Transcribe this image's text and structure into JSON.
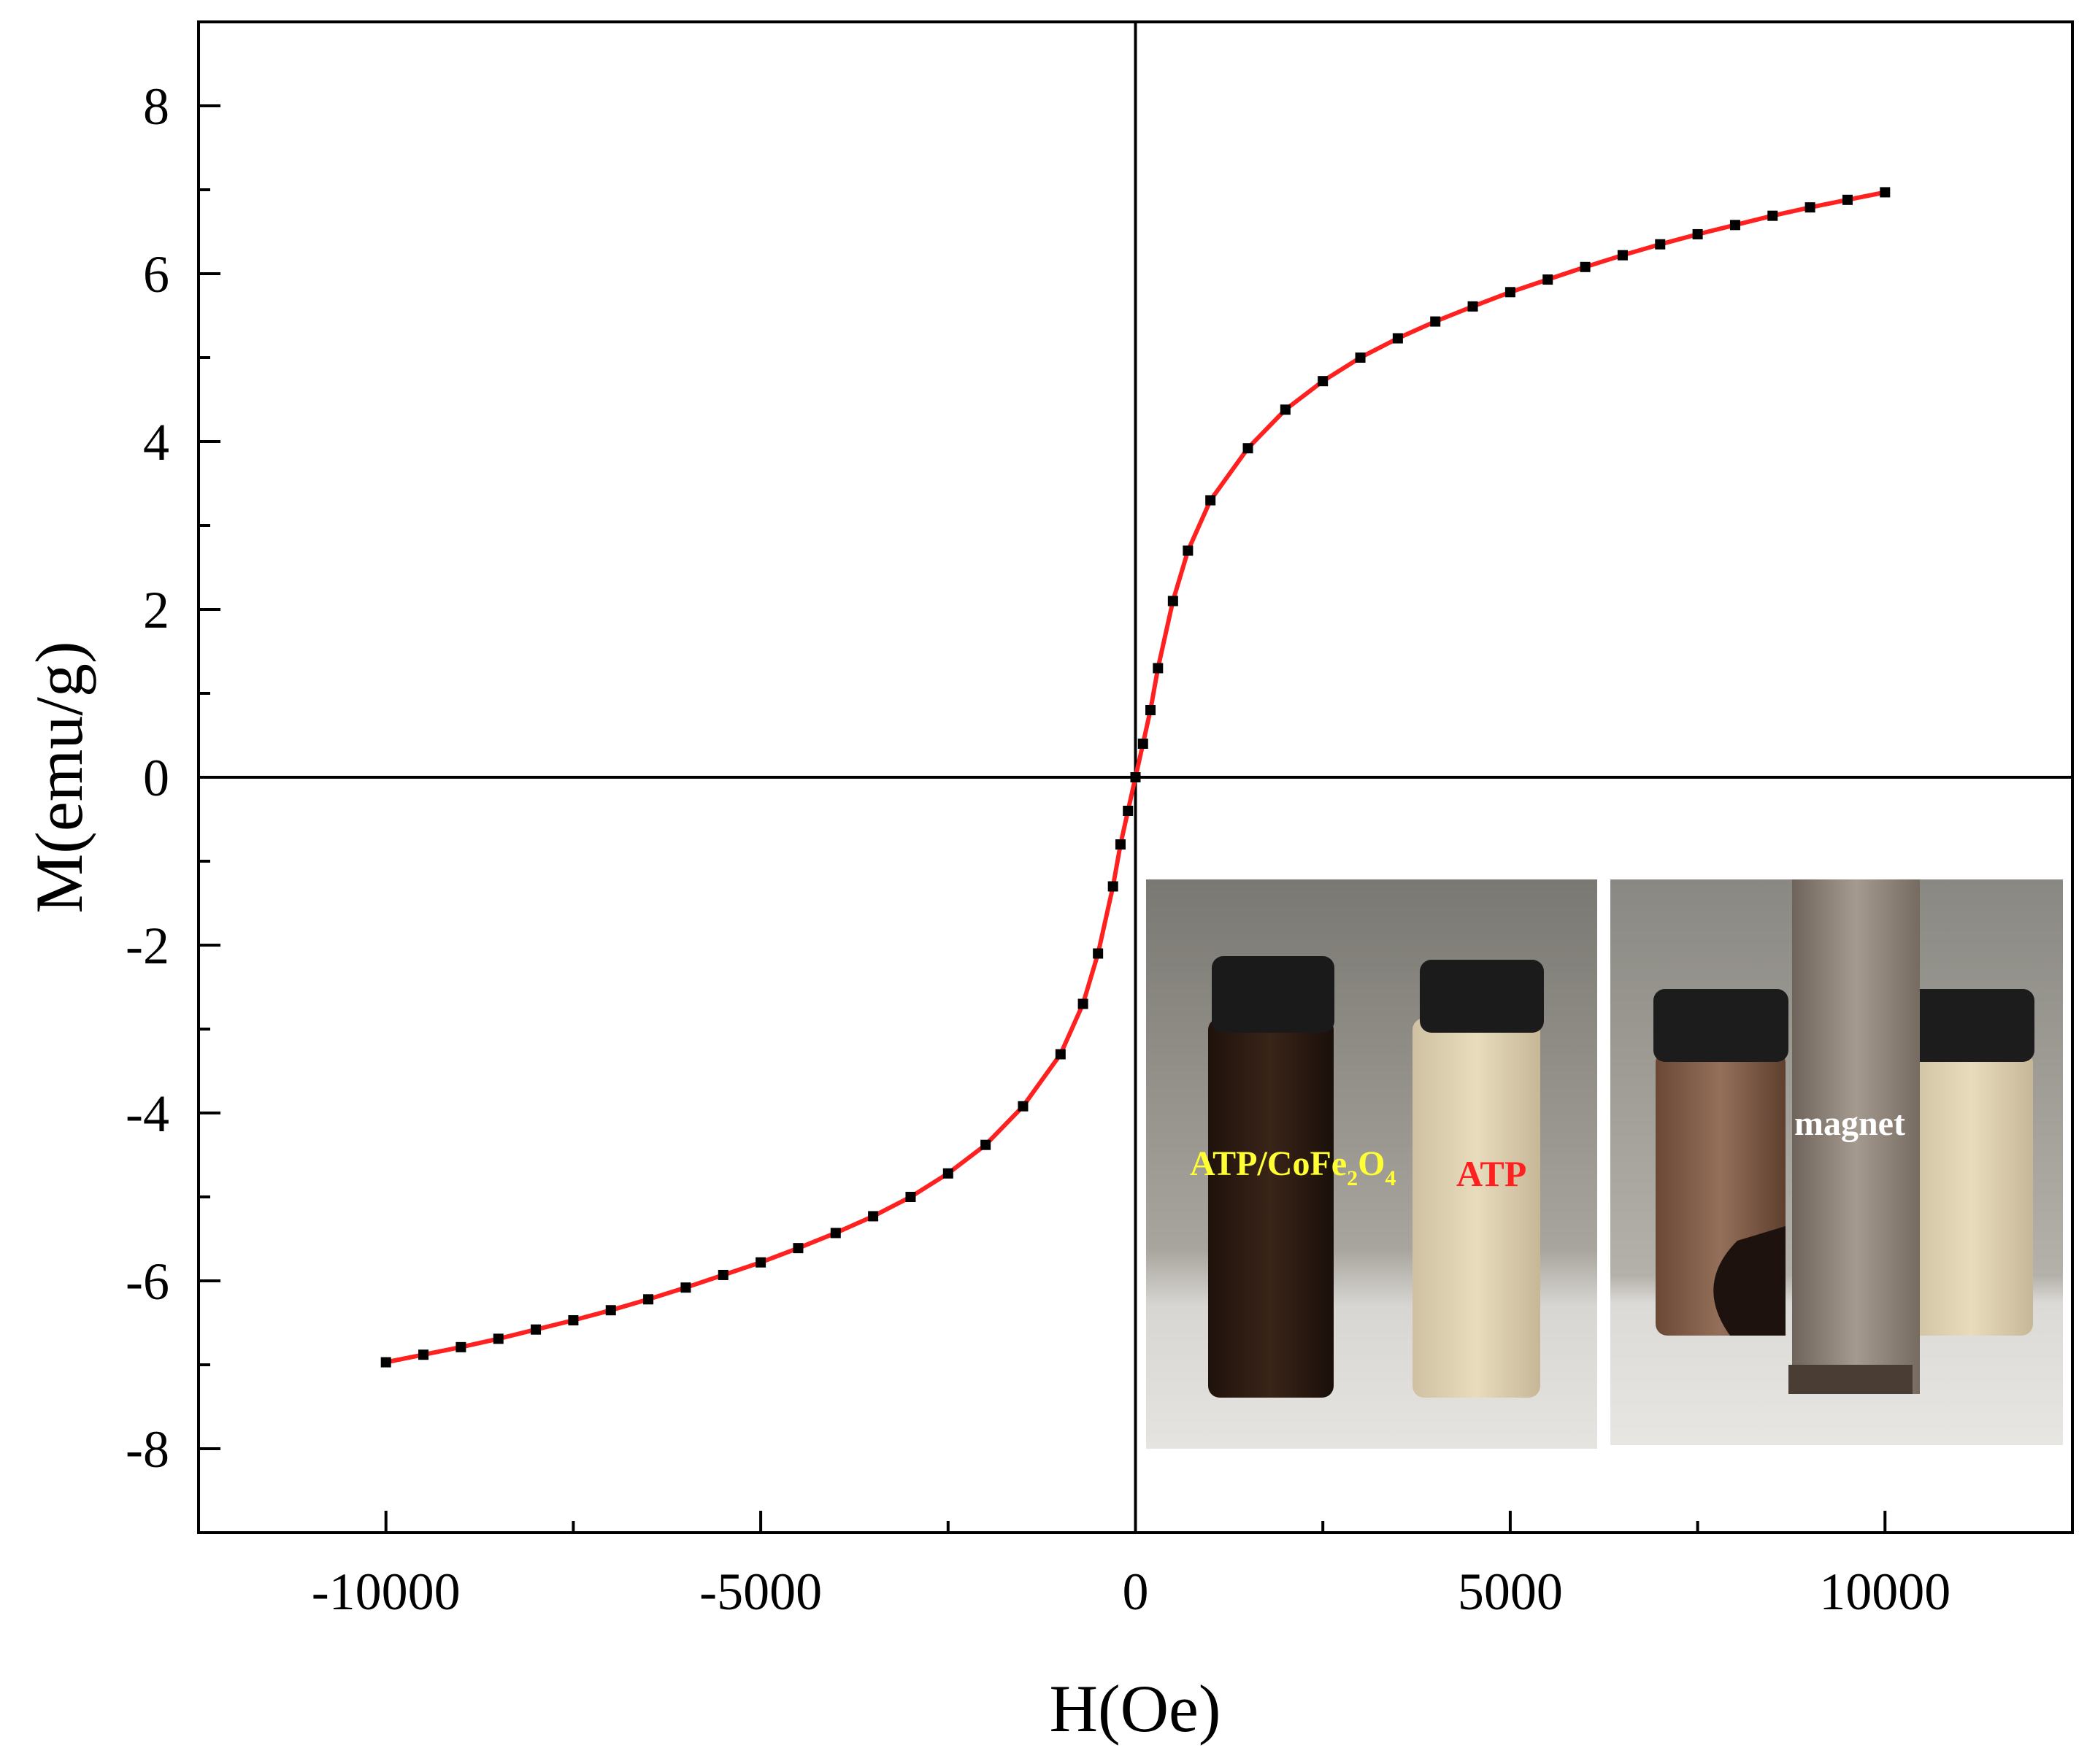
{
  "chart_data": {
    "type": "line",
    "xlabel": "H(Oe)",
    "ylabel": "M(emu/g)",
    "xlim": [
      -12500,
      12500
    ],
    "ylim": [
      -9,
      9
    ],
    "xticks": [
      -10000,
      -5000,
      0,
      5000,
      10000
    ],
    "xtick_labels": [
      "-10000",
      "-5000",
      "0",
      "5000",
      "10000"
    ],
    "yticks": [
      -8,
      -6,
      -4,
      -2,
      0,
      2,
      4,
      6,
      8
    ],
    "ytick_labels": [
      "-8",
      "-6",
      "-4",
      "-2",
      "0",
      "2",
      "4",
      "6",
      "8"
    ],
    "grid": false,
    "series": [
      {
        "marker": "square",
        "line_color": "#ff2020",
        "marker_color": "#000000",
        "x": [
          -10000,
          -9500,
          -9000,
          -8500,
          -8000,
          -7500,
          -7000,
          -6500,
          -6000,
          -5500,
          -5000,
          -4500,
          -4000,
          -3500,
          -3000,
          -2500,
          -2000,
          -1500,
          -1000,
          -700,
          -500,
          -300,
          -200,
          -100,
          0,
          100,
          200,
          300,
          500,
          700,
          1000,
          1500,
          2000,
          2500,
          3000,
          3500,
          4000,
          4500,
          5000,
          5500,
          6000,
          6500,
          7000,
          7500,
          8000,
          8500,
          9000,
          9500,
          10000
        ],
        "y": [
          -6.97,
          -6.88,
          -6.79,
          -6.69,
          -6.58,
          -6.47,
          -6.35,
          -6.22,
          -6.08,
          -5.93,
          -5.78,
          -5.61,
          -5.43,
          -5.23,
          -5.0,
          -4.72,
          -4.38,
          -3.92,
          -3.3,
          -2.7,
          -2.1,
          -1.3,
          -0.8,
          -0.4,
          0.0,
          0.4,
          0.8,
          1.3,
          2.1,
          2.7,
          3.3,
          3.92,
          4.38,
          4.72,
          5.0,
          5.23,
          5.43,
          5.61,
          5.78,
          5.93,
          6.08,
          6.22,
          6.35,
          6.47,
          6.58,
          6.69,
          6.79,
          6.88,
          6.97
        ]
      }
    ]
  },
  "inset": {
    "left_photo": {
      "label_composite": "ATP/CoFe",
      "label_composite_sub1": "2",
      "label_composite_mid": "O",
      "label_composite_sub2": "4",
      "label_composite_color": "#ffff33",
      "label_atp": "ATP",
      "label_atp_color": "#ff2020"
    },
    "right_photo": {
      "label_magnet": "magnet",
      "label_magnet_color": "#ffffff"
    }
  }
}
